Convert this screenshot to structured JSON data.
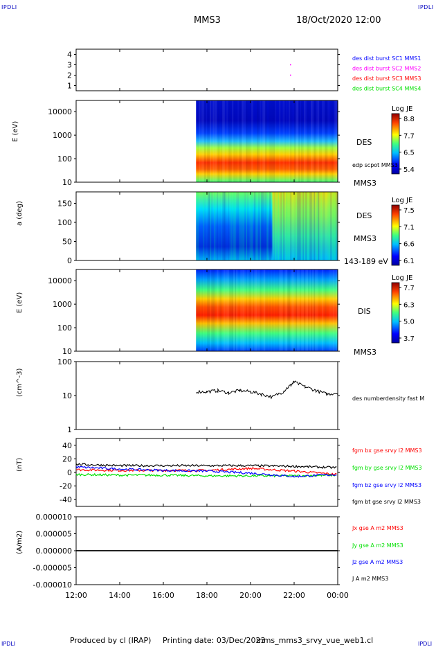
{
  "corner_label": "IPDLI",
  "header": {
    "spacecraft": "MMS3",
    "datetime": "18/Oct/2020 12:00"
  },
  "footer": {
    "produced_by": "Produced by cl (IRAP)",
    "printing_date": "Printing date: 03/Dec/2023",
    "filename": "mms_mms3_srvy_vue_web1.cl"
  },
  "colors": {
    "blue": "#0000ff",
    "magenta": "#ff00ff",
    "red": "#ff0000",
    "green": "#00e000",
    "black": "#000000"
  },
  "chart_data": [
    {
      "type": "scatter",
      "panel": "burst-availability",
      "x_range": [
        "12:00",
        "00:00"
      ],
      "ylim": [
        0.5,
        4.5
      ],
      "yticks": [
        1,
        2,
        3,
        4
      ],
      "legend": [
        {
          "name": "des dist burst SC1 MMS1",
          "color": "#0000ff"
        },
        {
          "name": "des dist burst SC2 MMS2",
          "color": "#ff00ff"
        },
        {
          "name": "des dist burst SC3 MMS3",
          "color": "#ff0000"
        },
        {
          "name": "des dist burst SC4 MMS4",
          "color": "#00e000"
        }
      ],
      "points": [
        {
          "x": "21:50",
          "y": 3,
          "color": "#ff00ff"
        },
        {
          "x": "21:50",
          "y": 2,
          "color": "#ff00ff"
        }
      ]
    },
    {
      "type": "heatmap",
      "panel": "des-energy",
      "ylabel": "E (eV)",
      "yscale": "log",
      "ylim": [
        10,
        30000
      ],
      "yticks": [
        "10",
        "100",
        "1000",
        "10000"
      ],
      "data_start": "17:30",
      "labels": [
        "DES",
        "edp scpot MMS3",
        "MMS3"
      ],
      "colorbar": {
        "title": "Log JE",
        "ticks": [
          "8.8",
          "7.7",
          "6.5",
          "5.4"
        ]
      }
    },
    {
      "type": "heatmap",
      "panel": "des-pitch-angle",
      "ylabel": "a (deg)",
      "ylim": [
        0,
        180
      ],
      "yticks": [
        "0",
        "50",
        "100",
        "150"
      ],
      "data_start": "17:30",
      "labels": [
        "DES",
        "MMS3",
        "143-189 eV"
      ],
      "colorbar": {
        "title": "Log JE",
        "ticks": [
          "7.5",
          "7.1",
          "6.6",
          "6.1"
        ]
      }
    },
    {
      "type": "heatmap",
      "panel": "dis-energy",
      "ylabel": "E (eV)",
      "yscale": "log",
      "ylim": [
        10,
        30000
      ],
      "yticks": [
        "10",
        "100",
        "1000",
        "10000"
      ],
      "data_start": "17:30",
      "labels": [
        "DIS",
        "MMS3"
      ],
      "colorbar": {
        "title": "Log JE",
        "ticks": [
          "7.7",
          "6.3",
          "5.0",
          "3.7"
        ]
      }
    },
    {
      "type": "line",
      "panel": "density",
      "ylabel": "(cm^-3)",
      "yscale": "log",
      "ylim": [
        1,
        100
      ],
      "yticks": [
        "1",
        "10",
        "100"
      ],
      "series": [
        {
          "name": "des numberdensity fast M",
          "color": "#000000",
          "x": [
            "17:30",
            "18:00",
            "18:30",
            "19:00",
            "19:30",
            "20:00",
            "20:30",
            "21:00",
            "21:30",
            "21:50",
            "22:00",
            "22:30",
            "23:00",
            "23:30",
            "00:00"
          ],
          "values": [
            13,
            13,
            14,
            12,
            14,
            13,
            11,
            9,
            13,
            20,
            25,
            18,
            14,
            11,
            12
          ]
        }
      ]
    },
    {
      "type": "line",
      "panel": "magnetic-field",
      "ylabel": "(nT)",
      "ylim": [
        -50,
        50
      ],
      "yticks": [
        "-40",
        "-20",
        "0",
        "20",
        "40"
      ],
      "series": [
        {
          "name": "fgm bx gse srvy l2 MMS3",
          "color": "#ff0000",
          "x": [
            "12:00",
            "14:00",
            "16:00",
            "18:00",
            "20:00",
            "22:00",
            "00:00"
          ],
          "values": [
            4,
            3,
            3,
            3,
            6,
            2,
            -3
          ]
        },
        {
          "name": "fgm by gse srvy l2 MMS3",
          "color": "#00e000",
          "x": [
            "12:00",
            "14:00",
            "16:00",
            "18:00",
            "20:00",
            "22:00",
            "00:00"
          ],
          "values": [
            -3,
            -4,
            -4,
            -5,
            -5,
            -5,
            -4
          ]
        },
        {
          "name": "fgm bz gse srvy l2 MMS3",
          "color": "#0000ff",
          "x": [
            "12:00",
            "14:00",
            "16:00",
            "18:00",
            "20:00",
            "22:00",
            "00:00"
          ],
          "values": [
            8,
            5,
            3,
            2,
            -1,
            -6,
            -3
          ]
        },
        {
          "name": "fgm bt gse srvy l2 MMS3",
          "color": "#000000",
          "x": [
            "12:00",
            "14:00",
            "16:00",
            "18:00",
            "20:00",
            "22:00",
            "00:00"
          ],
          "values": [
            12,
            10,
            10,
            10,
            10,
            9,
            7
          ]
        }
      ]
    },
    {
      "type": "line",
      "panel": "current-density",
      "ylabel": "(A/m2)",
      "ylim": [
        -1e-05,
        1e-05
      ],
      "yticks": [
        "-0.000010",
        "-0.000005",
        "0.000000",
        "0.000005",
        "0.000010"
      ],
      "series": [
        {
          "name": "Jx gse A m2 MMS3",
          "color": "#ff0000"
        },
        {
          "name": "Jy gse A m2 MMS3",
          "color": "#00e000"
        },
        {
          "name": "Jz gse A m2 MMS3",
          "color": "#0000ff"
        },
        {
          "name": "J A m2 MMS3",
          "color": "#000000",
          "x": [
            "12:00",
            "00:00"
          ],
          "values": [
            0,
            0
          ]
        }
      ]
    }
  ],
  "x_axis": {
    "ticks": [
      "12:00",
      "14:00",
      "16:00",
      "18:00",
      "20:00",
      "22:00",
      "00:00"
    ]
  }
}
